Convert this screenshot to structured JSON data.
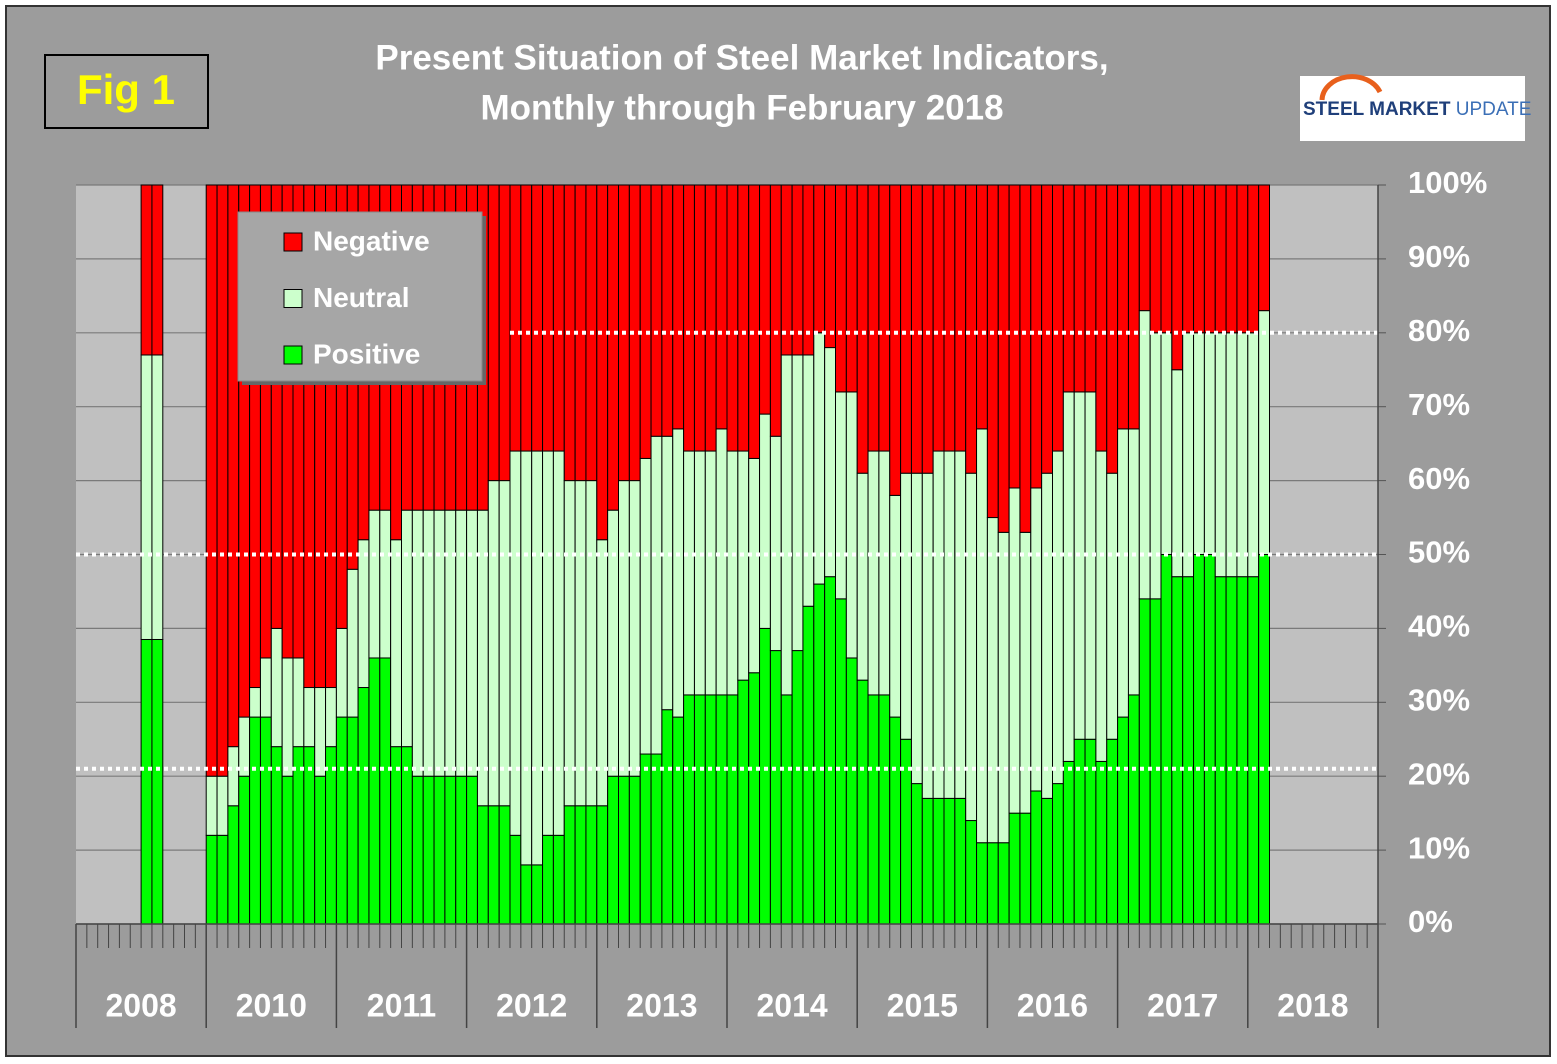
{
  "chart_data": {
    "type": "stacked-bar",
    "figure_label": "Fig 1",
    "title": [
      "Present Situation of Steel Market Indicators,",
      "Monthly through February 2018"
    ],
    "logo": {
      "bold": "STEEL MARKET",
      "light": "UPDATE"
    },
    "groups": [
      "2008",
      "2010",
      "2011",
      "2012",
      "2013",
      "2014",
      "2015",
      "2016",
      "2017",
      "2018"
    ],
    "categories": [
      null,
      null,
      null,
      null,
      null,
      null,
      null,
      null,
      null,
      null,
      null,
      null,
      null,
      null,
      null,
      null,
      null,
      null,
      null,
      null,
      null,
      null,
      null,
      null,
      null,
      null,
      null,
      null,
      null,
      null,
      null,
      null,
      null,
      null,
      null,
      null,
      null,
      null,
      null,
      null,
      null,
      null,
      null,
      null,
      null,
      null,
      null,
      null,
      null,
      null,
      null,
      null,
      null,
      null,
      null,
      null,
      null,
      null,
      null,
      null,
      null,
      null,
      null,
      null,
      null,
      null,
      null,
      null,
      null,
      null,
      null,
      null,
      null,
      null,
      null,
      null,
      null,
      null,
      null,
      null,
      null,
      null,
      null,
      null,
      null,
      null,
      null,
      null,
      null,
      null,
      null,
      null,
      null,
      null,
      null,
      null,
      null,
      null,
      null,
      null,
      null,
      null,
      null,
      null,
      null,
      null,
      null,
      null,
      null,
      null,
      null,
      null,
      null,
      null,
      null,
      null,
      null,
      null,
      null,
      null
    ],
    "series": [
      {
        "name": "Negative",
        "color": "#ff0000",
        "values": [
          null,
          null,
          null,
          null,
          null,
          null,
          23,
          23,
          null,
          null,
          null,
          null,
          80,
          80,
          76,
          72,
          68,
          64,
          60,
          64,
          64,
          68,
          68,
          68,
          60,
          52,
          48,
          44,
          44,
          48,
          44,
          44,
          44,
          44,
          44,
          44,
          44,
          44,
          40,
          40,
          36,
          36,
          36,
          36,
          36,
          40,
          40,
          40,
          48,
          44,
          40,
          40,
          37,
          34,
          34,
          33,
          36,
          36,
          36,
          33,
          36,
          36,
          37,
          31,
          34,
          23,
          23,
          23,
          20,
          22,
          28,
          28,
          39,
          36,
          36,
          42,
          39,
          39,
          39,
          36,
          36,
          36,
          39,
          33,
          45,
          47,
          41,
          47,
          41,
          39,
          36,
          28,
          28,
          28,
          36,
          39,
          33,
          33,
          17,
          20,
          20,
          25,
          20,
          20,
          20,
          20,
          20,
          20,
          20,
          17,
          null,
          null,
          null,
          null,
          null,
          null,
          null,
          null,
          null,
          null
        ]
      },
      {
        "name": "Neutral",
        "color": "#ccffcc",
        "values": [
          null,
          null,
          null,
          null,
          null,
          null,
          38.5,
          38.5,
          null,
          null,
          null,
          null,
          8,
          8,
          8,
          8,
          4,
          8,
          16,
          16,
          12,
          8,
          12,
          8,
          12,
          20,
          20,
          20,
          20,
          28,
          32,
          36,
          36,
          36,
          36,
          36,
          36,
          40,
          44,
          44,
          52,
          56,
          56,
          52,
          52,
          44,
          44,
          44,
          36,
          36,
          40,
          40,
          40,
          43,
          37,
          39,
          33,
          33,
          33,
          36,
          33,
          31,
          29,
          29,
          29,
          46,
          40,
          34,
          34,
          31,
          28,
          36,
          28,
          33,
          33,
          30,
          36,
          42,
          44,
          47,
          47,
          47,
          47,
          56,
          44,
          42,
          44,
          38,
          41,
          44,
          45,
          50,
          47,
          47,
          42,
          36,
          39,
          36,
          39,
          36,
          30,
          28,
          33,
          30,
          30,
          33,
          33,
          33,
          33,
          33,
          null,
          null,
          null,
          null,
          null,
          null,
          null,
          null,
          null,
          null
        ]
      },
      {
        "name": "Positive",
        "color": "#00ff00",
        "values": [
          null,
          null,
          null,
          null,
          null,
          null,
          38.5,
          38.5,
          null,
          null,
          null,
          null,
          12,
          12,
          16,
          20,
          28,
          28,
          24,
          20,
          24,
          24,
          20,
          24,
          28,
          28,
          32,
          36,
          36,
          24,
          24,
          20,
          20,
          20,
          20,
          20,
          20,
          16,
          16,
          16,
          12,
          8,
          8,
          12,
          12,
          16,
          16,
          16,
          16,
          20,
          20,
          20,
          23,
          23,
          29,
          28,
          31,
          31,
          31,
          31,
          31,
          33,
          34,
          40,
          37,
          31,
          37,
          43,
          46,
          47,
          44,
          36,
          33,
          31,
          31,
          28,
          25,
          19,
          17,
          17,
          17,
          17,
          14,
          11,
          11,
          11,
          15,
          15,
          18,
          17,
          19,
          22,
          25,
          25,
          22,
          25,
          28,
          31,
          44,
          44,
          50,
          47,
          47,
          50,
          50,
          47,
          47,
          47,
          47,
          50,
          null,
          null,
          null,
          null,
          null,
          null,
          null,
          null,
          null,
          null
        ]
      }
    ],
    "ylim": [
      0,
      100
    ],
    "yticks": [
      {
        "value": 0,
        "label": "0%"
      },
      {
        "value": 10,
        "label": "10%"
      },
      {
        "value": 20,
        "label": "20%"
      },
      {
        "value": 30,
        "label": "30%"
      },
      {
        "value": 40,
        "label": "40%"
      },
      {
        "value": 50,
        "label": "50%"
      },
      {
        "value": 60,
        "label": "60%"
      },
      {
        "value": 70,
        "label": "70%"
      },
      {
        "value": 80,
        "label": "80%"
      },
      {
        "value": 90,
        "label": "90%"
      },
      {
        "value": 100,
        "label": "100%"
      }
    ],
    "reference_lines": [
      80,
      50,
      21
    ],
    "grid": true,
    "legend": "upper left"
  }
}
